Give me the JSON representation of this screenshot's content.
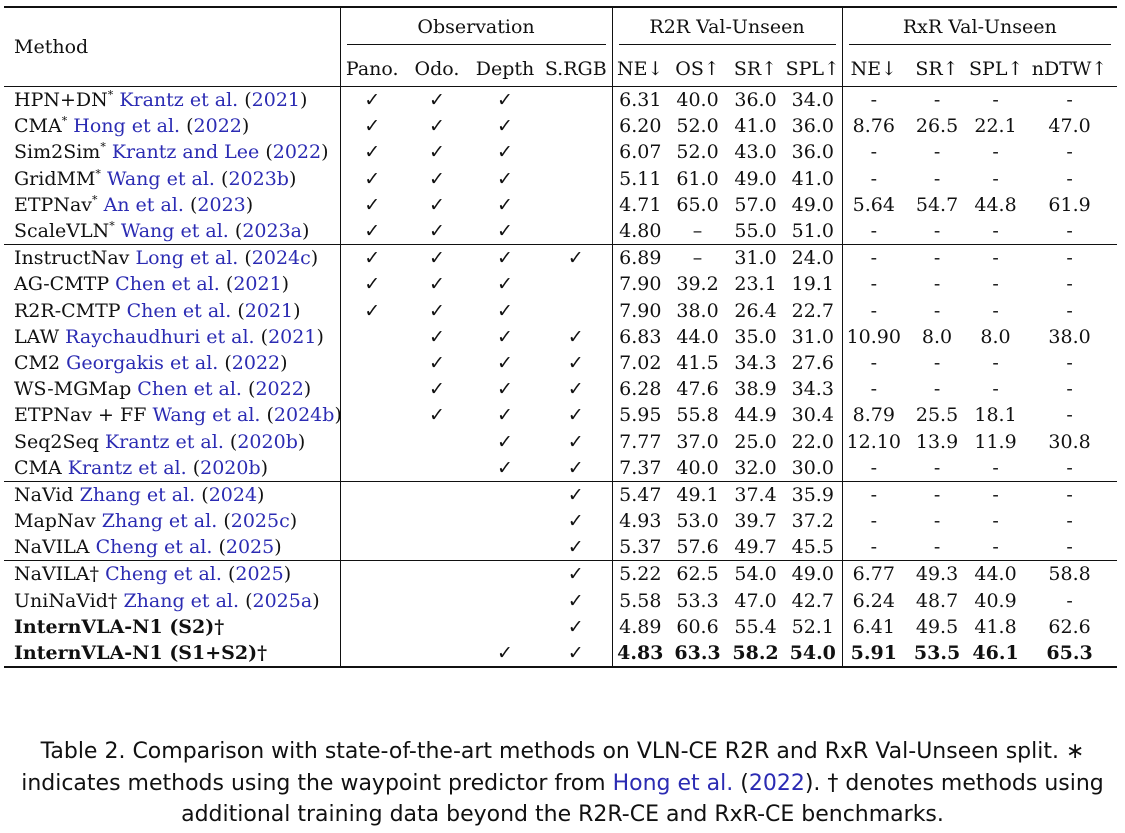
{
  "table": {
    "header": {
      "method": "Method",
      "observation": "Observation",
      "r2r": "R2R Val-Unseen",
      "rxr": "RxR Val-Unseen",
      "obs_cols": [
        "Pano.",
        "Odo.",
        "Depth",
        "S.RGB"
      ],
      "r2r_cols": [
        "NE↓",
        "OS↑",
        "SR↑",
        "SPL↑"
      ],
      "rxr_cols": [
        "NE↓",
        "SR↑",
        "SPL↑",
        "nDTW↑"
      ]
    },
    "groups": [
      [
        {
          "name": "HPN+DN",
          "mark": "*",
          "cite": "Krantz et al.",
          "cite_open": "(",
          "year": "2021",
          "cite_close": ")",
          "obs": [
            "✓",
            "✓",
            "✓",
            ""
          ],
          "r2r": [
            "6.31",
            "40.0",
            "36.0",
            "34.0"
          ],
          "rxr": [
            "-",
            "-",
            "-",
            "-"
          ]
        },
        {
          "name": "CMA",
          "mark": "*",
          "cite": "Hong et al.",
          "cite_open": "(",
          "year": "2022",
          "cite_close": ")",
          "obs": [
            "✓",
            "✓",
            "✓",
            ""
          ],
          "r2r": [
            "6.20",
            "52.0",
            "41.0",
            "36.0"
          ],
          "rxr": [
            "8.76",
            "26.5",
            "22.1",
            "47.0"
          ]
        },
        {
          "name": "Sim2Sim",
          "mark": "*",
          "cite": "Krantz and Lee",
          "cite_open": "(",
          "year": "2022",
          "cite_close": ")",
          "obs": [
            "✓",
            "✓",
            "✓",
            ""
          ],
          "r2r": [
            "6.07",
            "52.0",
            "43.0",
            "36.0"
          ],
          "rxr": [
            "-",
            "-",
            "-",
            "-"
          ]
        },
        {
          "name": "GridMM",
          "mark": "*",
          "cite": "Wang et al.",
          "cite_open": "(",
          "year": "2023b",
          "cite_close": ")",
          "obs": [
            "✓",
            "✓",
            "✓",
            ""
          ],
          "r2r": [
            "5.11",
            "61.0",
            "49.0",
            "41.0"
          ],
          "rxr": [
            "-",
            "-",
            "-",
            "-"
          ]
        },
        {
          "name": "ETPNav",
          "mark": "*",
          "cite": "An et al.",
          "cite_open": "(",
          "year": "2023",
          "cite_close": ")",
          "obs": [
            "✓",
            "✓",
            "✓",
            ""
          ],
          "r2r": [
            "4.71",
            "65.0",
            "57.0",
            "49.0"
          ],
          "rxr": [
            "5.64",
            "54.7",
            "44.8",
            "61.9"
          ]
        },
        {
          "name": "ScaleVLN",
          "mark": "*",
          "cite": "Wang et al.",
          "cite_open": "(",
          "year": "2023a",
          "cite_close": ")",
          "obs": [
            "✓",
            "✓",
            "✓",
            ""
          ],
          "r2r": [
            "4.80",
            "–",
            "55.0",
            "51.0"
          ],
          "rxr": [
            "-",
            "-",
            "-",
            "-"
          ]
        }
      ],
      [
        {
          "name": "InstructNav",
          "mark": "",
          "cite": "Long et al.",
          "cite_open": "(",
          "year": "2024c",
          "cite_close": ")",
          "obs": [
            "✓",
            "✓",
            "✓",
            "✓"
          ],
          "r2r": [
            "6.89",
            "–",
            "31.0",
            "24.0"
          ],
          "rxr": [
            "-",
            "-",
            "-",
            "-"
          ]
        },
        {
          "name": "AG-CMTP",
          "mark": "",
          "cite": "Chen et al.",
          "cite_open": "(",
          "year": "2021",
          "cite_close": ")",
          "obs": [
            "✓",
            "✓",
            "✓",
            ""
          ],
          "r2r": [
            "7.90",
            "39.2",
            "23.1",
            "19.1"
          ],
          "rxr": [
            "-",
            "-",
            "-",
            "-"
          ]
        },
        {
          "name": "R2R-CMTP",
          "mark": "",
          "cite": "Chen et al.",
          "cite_open": "(",
          "year": "2021",
          "cite_close": ")",
          "obs": [
            "✓",
            "✓",
            "✓",
            ""
          ],
          "r2r": [
            "7.90",
            "38.0",
            "26.4",
            "22.7"
          ],
          "rxr": [
            "-",
            "-",
            "-",
            "-"
          ]
        },
        {
          "name": "LAW",
          "mark": "",
          "cite": "Raychaudhuri et al.",
          "cite_open": "(",
          "year": "2021",
          "cite_close": ")",
          "obs": [
            "",
            "✓",
            "✓",
            "✓"
          ],
          "r2r": [
            "6.83",
            "44.0",
            "35.0",
            "31.0"
          ],
          "rxr": [
            "10.90",
            "8.0",
            "8.0",
            "38.0"
          ]
        },
        {
          "name": "CM2",
          "mark": "",
          "cite": "Georgakis et al.",
          "cite_open": "(",
          "year": "2022",
          "cite_close": ")",
          "obs": [
            "",
            "✓",
            "✓",
            "✓"
          ],
          "r2r": [
            "7.02",
            "41.5",
            "34.3",
            "27.6"
          ],
          "rxr": [
            "-",
            "-",
            "-",
            "-"
          ]
        },
        {
          "name": "WS-MGMap",
          "mark": "",
          "cite": "Chen et al.",
          "cite_open": "(",
          "year": "2022",
          "cite_close": ")",
          "obs": [
            "",
            "✓",
            "✓",
            "✓"
          ],
          "r2r": [
            "6.28",
            "47.6",
            "38.9",
            "34.3"
          ],
          "rxr": [
            "-",
            "-",
            "-",
            "-"
          ]
        },
        {
          "name": "ETPNav + FF",
          "mark": "",
          "cite": "Wang et al.",
          "cite_open": "(",
          "year": "2024b",
          "cite_close": ")",
          "obs": [
            "",
            "✓",
            "✓",
            "✓"
          ],
          "r2r": [
            "5.95",
            "55.8",
            "44.9",
            "30.4"
          ],
          "rxr": [
            "8.79",
            "25.5",
            "18.1",
            "-"
          ]
        },
        {
          "name": "Seq2Seq",
          "mark": "",
          "cite": "Krantz et al.",
          "cite_open": "(",
          "year": "2020b",
          "cite_close": ")",
          "obs": [
            "",
            "",
            "✓",
            "✓"
          ],
          "r2r": [
            "7.77",
            "37.0",
            "25.0",
            "22.0"
          ],
          "rxr": [
            "12.10",
            "13.9",
            "11.9",
            "30.8"
          ]
        },
        {
          "name": "CMA",
          "mark": "",
          "cite": "Krantz et al.",
          "cite_open": "(",
          "year": "2020b",
          "cite_close": ")",
          "obs": [
            "",
            "",
            "✓",
            "✓"
          ],
          "r2r": [
            "7.37",
            "40.0",
            "32.0",
            "30.0"
          ],
          "rxr": [
            "-",
            "-",
            "-",
            "-"
          ]
        }
      ],
      [
        {
          "name": "NaVid",
          "mark": "",
          "cite": "Zhang et al.",
          "cite_open": "(",
          "year": "2024",
          "cite_close": ")",
          "obs": [
            "",
            "",
            "",
            "✓"
          ],
          "r2r": [
            "5.47",
            "49.1",
            "37.4",
            "35.9"
          ],
          "rxr": [
            "-",
            "-",
            "-",
            "-"
          ]
        },
        {
          "name": "MapNav",
          "mark": "",
          "cite": "Zhang et al.",
          "cite_open": "(",
          "year": "2025c",
          "cite_close": ")",
          "obs": [
            "",
            "",
            "",
            "✓"
          ],
          "r2r": [
            "4.93",
            "53.0",
            "39.7",
            "37.2"
          ],
          "rxr": [
            "-",
            "-",
            "-",
            "-"
          ]
        },
        {
          "name": "NaVILA",
          "mark": "",
          "cite": "Cheng et al.",
          "cite_open": "(",
          "year": "2025",
          "cite_close": ")",
          "obs": [
            "",
            "",
            "",
            "✓"
          ],
          "r2r": [
            "5.37",
            "57.6",
            "49.7",
            "45.5"
          ],
          "rxr": [
            "-",
            "-",
            "-",
            "-"
          ]
        }
      ],
      [
        {
          "name": "NaVILA†",
          "mark": "",
          "cite": "Cheng et al.",
          "cite_open": "(",
          "year": "2025",
          "cite_close": ")",
          "obs": [
            "",
            "",
            "",
            "✓"
          ],
          "r2r": [
            "5.22",
            "62.5",
            "54.0",
            "49.0"
          ],
          "rxr": [
            "6.77",
            "49.3",
            "44.0",
            "58.8"
          ]
        },
        {
          "name": "UniNaVid†",
          "mark": "",
          "cite": "Zhang et al.",
          "cite_open": "(",
          "year": "2025a",
          "cite_close": ")",
          "obs": [
            "",
            "",
            "",
            "✓"
          ],
          "r2r": [
            "5.58",
            "53.3",
            "47.0",
            "42.7"
          ],
          "rxr": [
            "6.24",
            "48.7",
            "40.9",
            "-"
          ]
        },
        {
          "name": "InternVLA-N1 (S2)†",
          "mark": "",
          "cite": "",
          "cite_open": "",
          "year": "",
          "cite_close": "",
          "bold_name": true,
          "obs": [
            "",
            "",
            "",
            "✓"
          ],
          "r2r": [
            "4.89",
            "60.6",
            "55.4",
            "52.1"
          ],
          "rxr": [
            "6.41",
            "49.5",
            "41.8",
            "62.6"
          ]
        },
        {
          "name": "InternVLA-N1 (S1+S2)†",
          "mark": "",
          "cite": "",
          "cite_open": "",
          "year": "",
          "cite_close": "",
          "bold_name": true,
          "bold_values": true,
          "obs": [
            "",
            "",
            "✓",
            "✓"
          ],
          "r2r": [
            "4.83",
            "63.3",
            "58.2",
            "54.0"
          ],
          "rxr": [
            "5.91",
            "53.5",
            "46.1",
            "65.3"
          ]
        }
      ]
    ]
  },
  "caption": {
    "label": "Table 2.",
    "text1": " Comparison with state-of-the-art methods on VLN-CE R2R and RxR Val-Unseen split. ∗ indicates methods using the waypoint predictor from ",
    "cite": "Hong et al.",
    "cite_open": " (",
    "year": "2022",
    "text2": "). † denotes methods using additional training data beyond the R2R-CE and RxR-CE benchmarks."
  },
  "colors": {
    "citation": "#2b2bb3",
    "text": "#111111",
    "rule": "#111111"
  }
}
